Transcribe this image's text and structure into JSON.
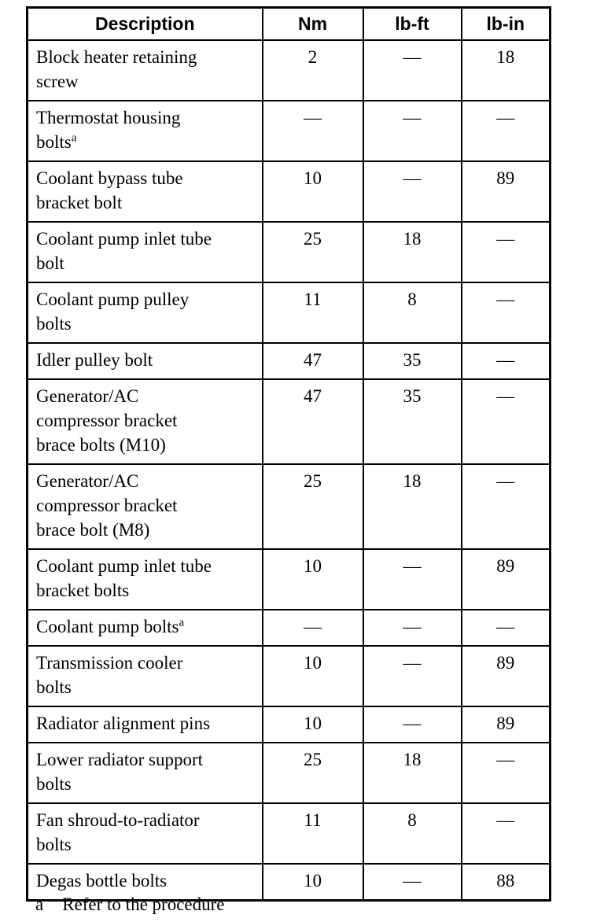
{
  "table": {
    "columns": [
      {
        "label": "Description"
      },
      {
        "label": "Nm"
      },
      {
        "label": "lb-ft"
      },
      {
        "label": "lb-in"
      }
    ],
    "rows": [
      {
        "description": "Block heater retaining screw",
        "marker": "",
        "nm": "2",
        "lb_ft": "—",
        "lb_in": "18"
      },
      {
        "description": "Thermostat housing bolts",
        "marker": "a",
        "nm": "—",
        "lb_ft": "—",
        "lb_in": "—"
      },
      {
        "description": "Coolant bypass tube bracket bolt",
        "marker": "",
        "nm": "10",
        "lb_ft": "—",
        "lb_in": "89"
      },
      {
        "description": "Coolant pump inlet tube bolt",
        "marker": "",
        "nm": "25",
        "lb_ft": "18",
        "lb_in": "—"
      },
      {
        "description": "Coolant pump pulley bolts",
        "marker": "",
        "nm": "11",
        "lb_ft": "8",
        "lb_in": "—"
      },
      {
        "description": "Idler pulley bolt",
        "marker": "",
        "nm": "47",
        "lb_ft": "35",
        "lb_in": "—"
      },
      {
        "description": "Generator/AC compressor bracket brace bolts (M10)",
        "marker": "",
        "nm": "47",
        "lb_ft": "35",
        "lb_in": "—"
      },
      {
        "description": "Generator/AC compressor bracket brace bolt (M8)",
        "marker": "",
        "nm": "25",
        "lb_ft": "18",
        "lb_in": "—"
      },
      {
        "description": "Coolant pump inlet tube bracket bolts",
        "marker": "",
        "nm": "10",
        "lb_ft": "—",
        "lb_in": "89"
      },
      {
        "description": "Coolant pump bolts",
        "marker": "a",
        "nm": "—",
        "lb_ft": "—",
        "lb_in": "—"
      },
      {
        "description": "Transmission cooler bolts",
        "marker": "",
        "nm": "10",
        "lb_ft": "—",
        "lb_in": "89"
      },
      {
        "description": "Radiator alignment pins",
        "marker": "",
        "nm": "10",
        "lb_ft": "—",
        "lb_in": "89"
      },
      {
        "description": "Lower radiator support bolts",
        "marker": "",
        "nm": "25",
        "lb_ft": "18",
        "lb_in": "—"
      },
      {
        "description": "Fan shroud-to-radiator bolts",
        "marker": "",
        "nm": "11",
        "lb_ft": "8",
        "lb_in": "—"
      },
      {
        "description": "Degas bottle bolts",
        "marker": "",
        "nm": "10",
        "lb_ft": "—",
        "lb_in": "88"
      }
    ]
  },
  "footnote": {
    "marker": "a",
    "text": "Refer to the procedure"
  }
}
